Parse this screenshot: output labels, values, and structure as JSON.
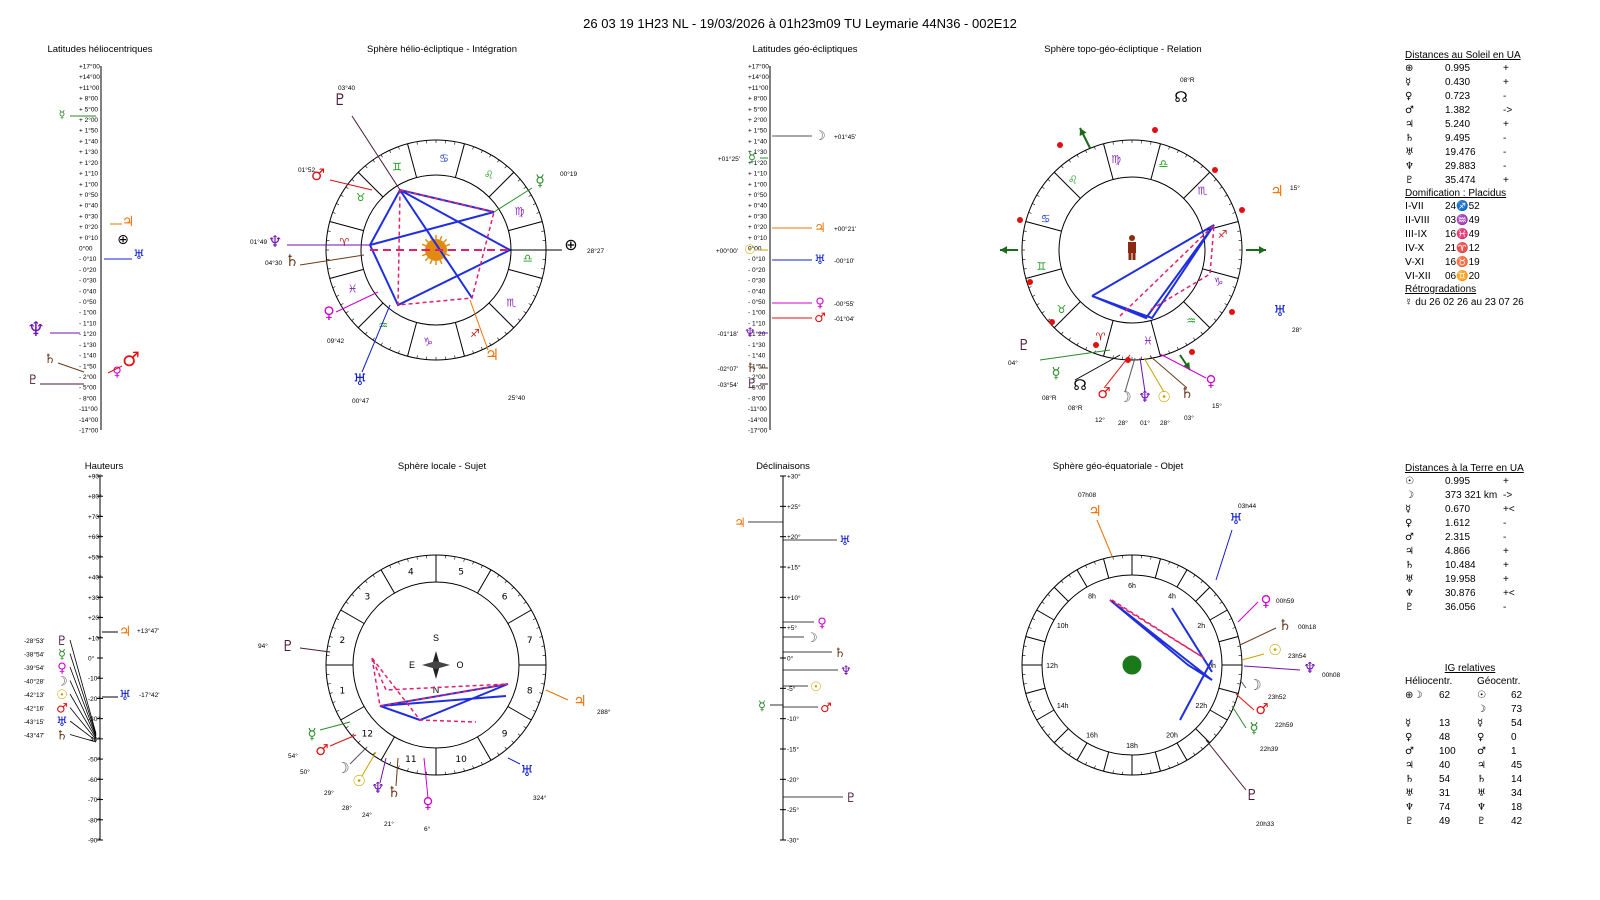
{
  "header": "26 03 19 1H23 NL   -  19/03/2026 à 01h23m09 TU  Leymarie  44N36 - 002E12",
  "panels": {
    "helio_lat": "Latitudes héliocentriques",
    "helio_sphere": "Sphère hélio-écliptique - Intégration",
    "geo_lat": "Latitudes géo-écliptiques",
    "topo_sphere": "Sphère topo-géo-écliptique - Relation",
    "heights": "Hauteurs",
    "local_sphere": "Sphère locale - Sujet",
    "declinations": "Déclinaisons",
    "equatorial_sphere": "Sphère géo-équatoriale - Objet"
  },
  "colors": {
    "sun": "#c9a200",
    "moon": "#555555",
    "mercury": "#2a8a2a",
    "venus": "#d000d0",
    "mars": "#e01010",
    "jupiter": "#f07000",
    "saturn": "#6b3a1a",
    "uranus": "#1020d0",
    "neptune": "#7010b0",
    "pluto": "#4a1a3a",
    "line_blue": "#1f2fe0",
    "line_pink": "#e0206a",
    "sign_green": "#1a9a1a",
    "sign_purple": "#8a2fc0",
    "sign_red": "#c01818",
    "sign_blue": "#1a3ad0",
    "sign_orange": "#e07010"
  },
  "helio_lat_scale": [
    "+17°00",
    "+14°00",
    "+11°00",
    "+ 8°00",
    "+ 5°00",
    "+ 2°00",
    "+ 1°50",
    "+ 1°40",
    "+ 1°30",
    "+ 1°20",
    "+ 1°10",
    "+ 1°00",
    "+ 0°50",
    "+ 0°40",
    "+ 0°30",
    "+ 0°20",
    "+ 0°10",
    "0°00",
    "- 0°10",
    "- 0°20",
    "- 0°30",
    "- 0°40",
    "- 0°50",
    "- 1°00",
    "- 1°10",
    "- 1°20",
    "- 1°30",
    "- 1°40",
    "- 1°50",
    "- 2°00",
    "- 5°00",
    "- 8°00",
    "-11°00",
    "-14°00",
    "-17°00"
  ],
  "geo_lat_scale": [
    "+17°00",
    "+14°00",
    "+11°00",
    "+ 8°00",
    "+ 5°00",
    "+ 2°00",
    "+ 1°50",
    "+ 1°40",
    "+ 1°30",
    "+ 1°20",
    "+ 1°10",
    "+ 1°00",
    "+ 0°50",
    "+ 0°40",
    "+ 0°30",
    "+ 0°20",
    "+ 0°10",
    "0°00",
    "- 0°10",
    "- 0°20",
    "- 0°30",
    "- 0°40",
    "- 0°50",
    "- 1°00",
    "- 1°10",
    "- 1°20",
    "- 1°30",
    "- 1°40",
    "- 1°50",
    "- 2°00",
    "- 5°00",
    "- 8°00",
    "-11°00",
    "-14°00",
    "-17°00"
  ],
  "geo_lat_labels": [
    "+01°45'",
    "+01°25'",
    "+00°21'",
    "+00°00'",
    "-00°10'",
    "-00°55'",
    "-01°04'",
    "-01°18'",
    "-02°07'",
    "-03°54'"
  ],
  "heights_scale": [
    "+90°",
    "+80°",
    "+70°",
    "+60°",
    "+50°",
    "+40°",
    "+30°",
    "+20°",
    "+10°",
    "0°",
    "-10°",
    "-20°",
    "-30°",
    "-40°",
    "-50°",
    "-60°",
    "-70°",
    "-80°",
    "-90°"
  ],
  "heights_labels": [
    "-28°53'",
    "-38°54'",
    "-39°54'",
    "-40°28'",
    "-42°13'",
    "-42°16'",
    "-43°15'",
    "-43°47'",
    "+13°47'",
    "-17°42'"
  ],
  "decl_scale": [
    "+30°",
    "+25°",
    "+20°",
    "+15°",
    "+10°",
    "+5°",
    "0°",
    "-5°",
    "-10°",
    "-15°",
    "-20°",
    "-25°",
    "-30°"
  ],
  "helio_sphere_labels": [
    "03°40",
    "01°52",
    "01°49",
    "04°30",
    "09°42",
    "00°47",
    "25°40",
    "00°19",
    "28°27"
  ],
  "topo_sphere_labels": [
    "08°R",
    "15°",
    "28°",
    "04°",
    "08°R",
    "08°R",
    "12°",
    "28°",
    "01°",
    "28°",
    "03°",
    "15°"
  ],
  "local_sphere_labels": [
    "94°",
    "54°",
    "50°",
    "29°",
    "28°",
    "24°",
    "21°",
    "6°",
    "324°",
    "288°"
  ],
  "local_directions": {
    "n": "N",
    "s": "S",
    "e": "E",
    "o": "O"
  },
  "houses": [
    "1",
    "2",
    "3",
    "4",
    "5",
    "6",
    "7",
    "8",
    "9",
    "10",
    "11",
    "12"
  ],
  "equatorial_labels": [
    "07h08",
    "03h44",
    "00h59",
    "00h18",
    "23h54",
    "00h08",
    "23h52",
    "22h59",
    "22h39",
    "20h33"
  ],
  "equatorial_ring": [
    "0h",
    "2h",
    "4h",
    "6h",
    "8h",
    "10h",
    "12h",
    "14h",
    "16h",
    "18h",
    "20h",
    "22h"
  ],
  "dist_sun": {
    "title": "Distances au Soleil en UA",
    "rows": [
      {
        "g": "⊕",
        "v": "0.995",
        "s": "+"
      },
      {
        "g": "☿",
        "v": "0.430",
        "s": "+"
      },
      {
        "g": "♀",
        "v": "0.723",
        "s": "-"
      },
      {
        "g": "♂",
        "v": "1.382",
        "s": "->"
      },
      {
        "g": "♃",
        "v": "5.240",
        "s": "+"
      },
      {
        "g": "♄",
        "v": "9.495",
        "s": "-"
      },
      {
        "g": "♅",
        "v": "19.476",
        "s": "-"
      },
      {
        "g": "♆",
        "v": "29.883",
        "s": "-"
      },
      {
        "g": "♇",
        "v": "35.474",
        "s": "+"
      }
    ]
  },
  "domification": {
    "title": "Domification : Placidus",
    "rows": [
      {
        "g": "I-VII",
        "v": "24♐52"
      },
      {
        "g": "II-VIII",
        "v": "03♒49"
      },
      {
        "g": "III-IX",
        "v": "16♓49"
      },
      {
        "g": "IV-X",
        "v": "21♈12"
      },
      {
        "g": "V-XI",
        "v": "16♉19"
      },
      {
        "g": "VI-XII",
        "v": "06♊20"
      }
    ]
  },
  "retro": {
    "title": "Rétrogradations",
    "text": "☿  du 26 02 26 au 23 07 26"
  },
  "dist_earth": {
    "title": "Distances à la Terre en UA",
    "rows": [
      {
        "g": "☉",
        "v": "0.995",
        "s": "+"
      },
      {
        "g": "☽",
        "v": "373 321 km",
        "s": "->"
      },
      {
        "g": "☿",
        "v": "0.670",
        "s": "+<"
      },
      {
        "g": "♀",
        "v": "1.612",
        "s": "-"
      },
      {
        "g": "♂",
        "v": "2.315",
        "s": "-"
      },
      {
        "g": "♃",
        "v": "4.866",
        "s": "+"
      },
      {
        "g": "♄",
        "v": "10.484",
        "s": "+"
      },
      {
        "g": "♅",
        "v": "19.958",
        "s": "+"
      },
      {
        "g": "♆",
        "v": "30.876",
        "s": "+<"
      },
      {
        "g": "♇",
        "v": "36.056",
        "s": "-"
      }
    ]
  },
  "ig": {
    "title": "IG relatives",
    "helio": "Héliocentr.",
    "geo": "Géocentr.",
    "rows": [
      {
        "hg": "⊕☽",
        "hv": "62",
        "gg": "☉",
        "gv": "62"
      },
      {
        "hg": "",
        "hv": "",
        "gg": "☽",
        "gv": "73"
      },
      {
        "hg": "☿",
        "hv": "13",
        "gg": "☿",
        "gv": "54"
      },
      {
        "hg": "♀",
        "hv": "48",
        "gg": "♀",
        "gv": "0"
      },
      {
        "hg": "♂",
        "hv": "100",
        "gg": "♂",
        "gv": "1"
      },
      {
        "hg": "♃",
        "hv": "40",
        "gg": "♃",
        "gv": "45"
      },
      {
        "hg": "♄",
        "hv": "54",
        "gg": "♄",
        "gv": "14"
      },
      {
        "hg": "♅",
        "hv": "31",
        "gg": "♅",
        "gv": "34"
      },
      {
        "hg": "♆",
        "hv": "74",
        "gg": "♆",
        "gv": "18"
      },
      {
        "hg": "♇",
        "hv": "49",
        "gg": "♇",
        "gv": "42"
      }
    ]
  }
}
